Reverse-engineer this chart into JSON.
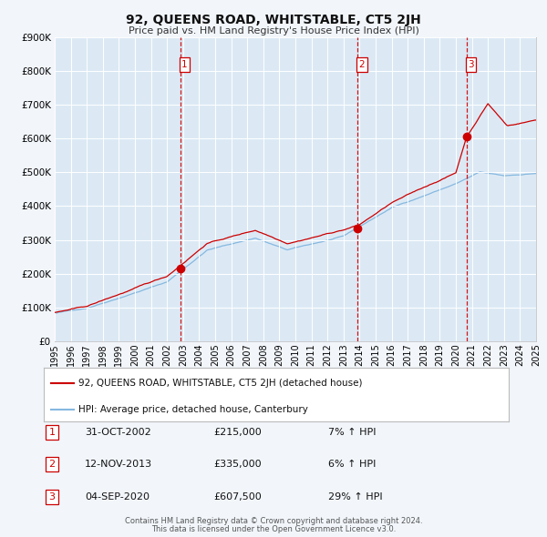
{
  "title": "92, QUEENS ROAD, WHITSTABLE, CT5 2JH",
  "subtitle": "Price paid vs. HM Land Registry's House Price Index (HPI)",
  "bg_color": "#dce9f5",
  "fig_bg_color": "#f2f6fb",
  "red_line_label": "92, QUEENS ROAD, WHITSTABLE, CT5 2JH (detached house)",
  "blue_line_label": "HPI: Average price, detached house, Canterbury",
  "transactions": [
    {
      "num": 1,
      "date": "31-OCT-2002",
      "price": "£215,000",
      "pct": "7%",
      "dir": "↑",
      "x_year": 2002.83,
      "y_val": 215000
    },
    {
      "num": 2,
      "date": "12-NOV-2013",
      "price": "£335,000",
      "pct": "6%",
      "dir": "↑",
      "x_year": 2013.87,
      "y_val": 335000
    },
    {
      "num": 3,
      "date": "04-SEP-2020",
      "price": "£607,500",
      "pct": "29%",
      "dir": "↑",
      "x_year": 2020.67,
      "y_val": 607500
    }
  ],
  "vline_color": "#cc0000",
  "dot_color": "#cc0000",
  "red_line_color": "#cc0000",
  "blue_line_color": "#85b8e0",
  "grid_color": "#ffffff",
  "footnote1": "Contains HM Land Registry data © Crown copyright and database right 2024.",
  "footnote2": "This data is licensed under the Open Government Licence v3.0.",
  "ylim": [
    0,
    900000
  ],
  "xlim_start": 1995,
  "xlim_end": 2025,
  "seed": 42
}
